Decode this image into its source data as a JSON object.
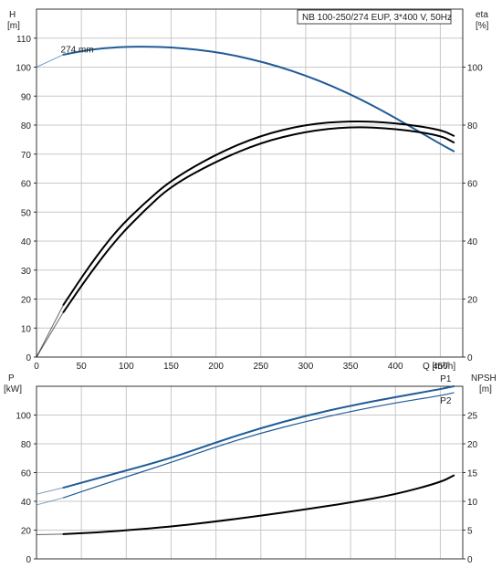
{
  "colors": {
    "blue": "#1f5b96",
    "black": "#000000",
    "grid": "#c8c8c8"
  },
  "chart_data": [
    {
      "type": "line",
      "title": "NB 100-250/274 EUP, 3*400 V, 50Hz",
      "xlabel": "Q [m³/h]",
      "xlim": [
        0,
        475
      ],
      "xticks": [
        0,
        50,
        100,
        150,
        200,
        250,
        300,
        350,
        400,
        450
      ],
      "y_left": {
        "label_line1": "H",
        "label_line2": "[m]",
        "ylim": [
          0,
          120
        ],
        "ticks": [
          0,
          10,
          20,
          30,
          40,
          50,
          60,
          70,
          80,
          90,
          100,
          110
        ]
      },
      "y_right": {
        "label_line1": "eta",
        "label_line2": "[%]",
        "ylim": [
          0,
          120
        ],
        "ticks": [
          0,
          20,
          40,
          60,
          80,
          100
        ]
      },
      "grid": true,
      "annotations": [
        {
          "text": "274 mm",
          "x": 27,
          "y": 105
        }
      ],
      "series": [
        {
          "name": "274 mm",
          "axis": "left",
          "color": "#1f5b96",
          "x": [
            0,
            30,
            60,
            90,
            120,
            150,
            180,
            210,
            240,
            270,
            300,
            330,
            360,
            390,
            420,
            450,
            465
          ],
          "y": [
            100,
            104.3,
            106.1,
            106.9,
            107.1,
            106.8,
            106,
            104.7,
            102.7,
            100.2,
            97.1,
            93.4,
            89.1,
            84.2,
            78.9,
            73.5,
            71
          ]
        },
        {
          "axis": "right",
          "color": "#000000",
          "x": [
            0,
            30,
            60,
            90,
            120,
            150,
            200,
            250,
            300,
            350,
            400,
            450,
            465
          ],
          "y": [
            0,
            18,
            32,
            44,
            53,
            61,
            70,
            76.5,
            80.2,
            81.5,
            80.8,
            78.5,
            76.3
          ]
        },
        {
          "axis": "right",
          "color": "#000000",
          "x": [
            0,
            30,
            60,
            90,
            120,
            150,
            200,
            250,
            300,
            350,
            400,
            450,
            465
          ],
          "y": [
            0,
            15.5,
            29,
            41,
            50.5,
            59,
            67.5,
            74,
            77.8,
            79.5,
            78.8,
            76.5,
            74
          ]
        }
      ]
    },
    {
      "type": "line",
      "xlim": [
        0,
        475
      ],
      "y_left": {
        "label_line1": "P",
        "label_line2": "[kW]",
        "ylim": [
          0,
          120
        ],
        "ticks": [
          0,
          20,
          40,
          60,
          80,
          100
        ]
      },
      "y_right": {
        "label_line1": "NPSH",
        "label_line2": "[m]",
        "ylim": [
          0,
          30
        ],
        "ticks": [
          0,
          5,
          10,
          15,
          20,
          25
        ]
      },
      "grid": true,
      "series": [
        {
          "name": "P1",
          "axis": "left",
          "color": "#1f5b96",
          "x": [
            0,
            30,
            80,
            150,
            200,
            250,
            300,
            350,
            400,
            450,
            465
          ],
          "y": [
            45,
            49.5,
            58,
            70,
            81,
            91,
            99.5,
            106.5,
            112.5,
            118,
            120
          ]
        },
        {
          "name": "P2",
          "axis": "left",
          "color": "#1f5b96",
          "x": [
            0,
            30,
            80,
            150,
            200,
            250,
            300,
            350,
            400,
            450,
            465
          ],
          "y": [
            37.5,
            42.5,
            53,
            67,
            78,
            87.5,
            95.5,
            102.5,
            108.5,
            113.5,
            115.5
          ]
        },
        {
          "name": "NPSH",
          "axis": "right",
          "color": "#000000",
          "x": [
            0,
            30,
            80,
            150,
            200,
            250,
            300,
            350,
            400,
            450,
            465
          ],
          "y": [
            4.2,
            4.3,
            4.7,
            5.6,
            6.5,
            7.5,
            8.6,
            9.8,
            11.2,
            13.3,
            14.5
          ]
        }
      ]
    }
  ]
}
